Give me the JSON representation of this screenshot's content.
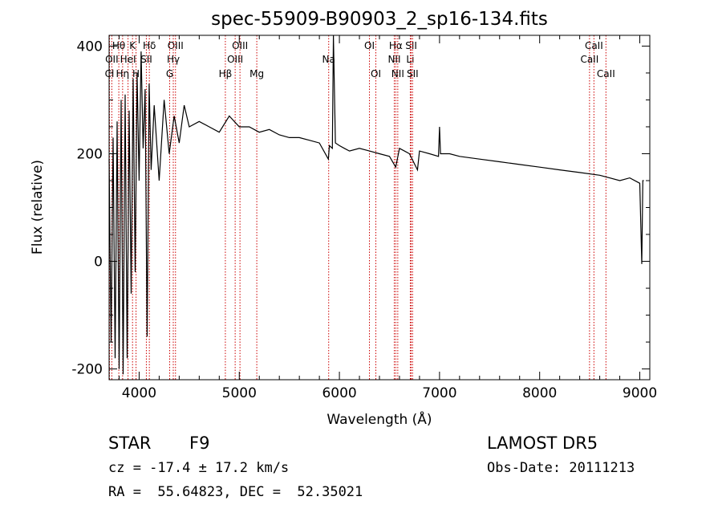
{
  "chart_data": {
    "type": "line",
    "title": "spec-55909-B90903_2_sp16-134.fits",
    "xlabel": "Wavelength (Å)",
    "ylabel": "Flux (relative)",
    "xlim": [
      3700,
      9100
    ],
    "ylim": [
      -220,
      420
    ],
    "xticks": [
      4000,
      5000,
      6000,
      7000,
      8000,
      9000
    ],
    "yticks": [
      -200,
      0,
      200,
      400
    ],
    "grid": false,
    "series": [
      {
        "x": [
          3700,
          3720,
          3740,
          3760,
          3780,
          3800,
          3820,
          3840,
          3860,
          3880,
          3900,
          3920,
          3940,
          3960,
          3980,
          4000,
          4020,
          4040,
          4060,
          4080,
          4100,
          4120,
          4150,
          4200,
          4250,
          4300,
          4350,
          4400,
          4450,
          4500,
          4600,
          4700,
          4800,
          4900,
          5000,
          5100,
          5200,
          5300,
          5400,
          5500,
          5600,
          5700,
          5800,
          5890,
          5900,
          5930,
          5940,
          5960,
          6000,
          6050,
          6100,
          6200,
          6300,
          6400,
          6500,
          6563,
          6600,
          6700,
          6780,
          6800,
          6900,
          6990,
          7000,
          7010,
          7100,
          7200,
          7400,
          7600,
          7800,
          8000,
          8200,
          8400,
          8600,
          8800,
          8900,
          9000,
          9020,
          9030,
          9040
        ],
        "y": [
          190,
          -150,
          230,
          -180,
          260,
          -200,
          300,
          -210,
          310,
          -180,
          280,
          -60,
          340,
          -20,
          350,
          150,
          390,
          210,
          320,
          -140,
          330,
          170,
          290,
          150,
          300,
          200,
          270,
          220,
          290,
          250,
          260,
          250,
          240,
          270,
          250,
          250,
          240,
          245,
          235,
          230,
          230,
          225,
          220,
          190,
          215,
          210,
          500,
          220,
          215,
          210,
          205,
          210,
          205,
          200,
          195,
          175,
          210,
          200,
          170,
          205,
          200,
          195,
          250,
          200,
          200,
          195,
          190,
          185,
          180,
          175,
          170,
          165,
          160,
          150,
          155,
          145,
          -5,
          150,
          150
        ]
      }
    ],
    "spectral_lines": [
      {
        "label": "Hθ",
        "x": 3797,
        "row": 1
      },
      {
        "label": "OII",
        "x": 3727,
        "row": 2
      },
      {
        "label": "Cl",
        "x": 3704,
        "row": 3
      },
      {
        "label": "K",
        "x": 3934,
        "row": 1
      },
      {
        "label": "HeI",
        "x": 3889,
        "row": 2
      },
      {
        "label": "Hη",
        "x": 3835,
        "row": 3
      },
      {
        "label": "H",
        "x": 3969,
        "row": 3
      },
      {
        "label": "Hδ",
        "x": 4102,
        "row": 1
      },
      {
        "label": "SII",
        "x": 4072,
        "row": 2
      },
      {
        "label": "OIII",
        "x": 4363,
        "row": 1
      },
      {
        "label": "Hγ",
        "x": 4341,
        "row": 2
      },
      {
        "label": "G",
        "x": 4305,
        "row": 3
      },
      {
        "label": "OIII",
        "x": 5007,
        "row": 1
      },
      {
        "label": "OIII",
        "x": 4959,
        "row": 2
      },
      {
        "label": "Hβ",
        "x": 4861,
        "row": 3
      },
      {
        "label": "Mg",
        "x": 5175,
        "row": 3
      },
      {
        "label": "Na",
        "x": 5893,
        "row": 2
      },
      {
        "label": "OI",
        "x": 6300,
        "row": 1
      },
      {
        "label": "OI",
        "x": 6364,
        "row": 3
      },
      {
        "label": "Hα",
        "x": 6563,
        "row": 1
      },
      {
        "label": "SII",
        "x": 6717,
        "row": 1
      },
      {
        "label": "NII",
        "x": 6548,
        "row": 2
      },
      {
        "label": "Li",
        "x": 6708,
        "row": 2
      },
      {
        "label": "NII",
        "x": 6583,
        "row": 3
      },
      {
        "label": "SII",
        "x": 6731,
        "row": 3
      },
      {
        "label": "CaII",
        "x": 8542,
        "row": 1
      },
      {
        "label": "CaII",
        "x": 8498,
        "row": 2
      },
      {
        "label": "CaII",
        "x": 8662,
        "row": 3
      }
    ],
    "line_color": "#cc0000",
    "spectrum_color": "#000000"
  },
  "info": {
    "class_label": "STAR",
    "subclass": "F9",
    "survey": "LAMOST DR5",
    "cz": "cz = -17.4 ± 17.2 km/s",
    "obs_date": "Obs-Date: 20111213",
    "coords": "RA =  55.64823, DEC =  52.35021"
  }
}
